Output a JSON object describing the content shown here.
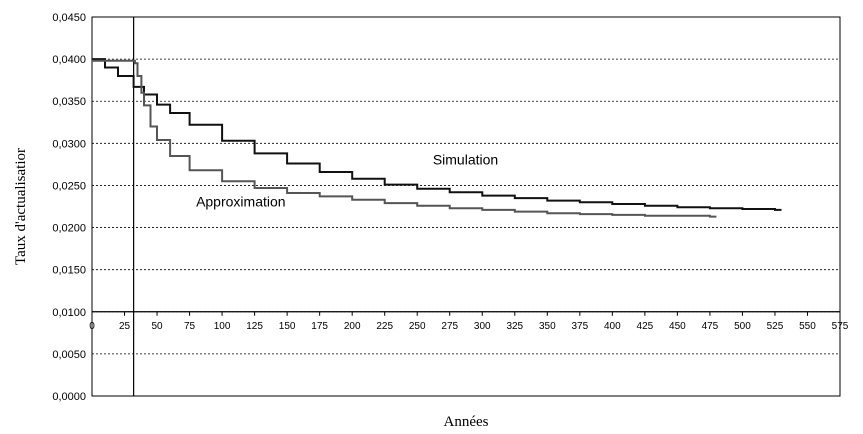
{
  "chart_data": {
    "type": "line",
    "title": "",
    "xlabel": "Années",
    "ylabel": "Taux d'actualisatior",
    "xlim": [
      0,
      575
    ],
    "ylim": [
      0,
      0.045
    ],
    "x_ticks": [
      "0",
      "25",
      "50",
      "75",
      "100",
      "125",
      "150",
      "175",
      "200",
      "225",
      "250",
      "275",
      "300",
      "325",
      "350",
      "375",
      "400",
      "425",
      "450",
      "475",
      "500",
      "525",
      "550",
      "575"
    ],
    "y_ticks": [
      "0,0000",
      "0,0050",
      "0,0100",
      "0,0150",
      "0,0200",
      "0,0250",
      "0,0300",
      "0,0350",
      "0,0400",
      "0,0450"
    ],
    "vertical_line_x": 32,
    "grid": "horizontal dotted",
    "legend": "none",
    "annotations": [
      {
        "text": "Simulation",
        "x": 262,
        "y": 0.0275
      },
      {
        "text": "Approximation",
        "x": 80,
        "y": 0.0225
      }
    ],
    "series": [
      {
        "color": "#111111",
        "x": [
          0,
          10,
          20,
          32,
          40,
          50,
          60,
          75,
          100,
          125,
          150,
          175,
          200,
          225,
          250,
          275,
          300,
          325,
          350,
          375,
          400,
          425,
          450,
          475,
          500,
          525,
          530
        ],
        "y": [
          0.04,
          0.039,
          0.038,
          0.0367,
          0.0358,
          0.0346,
          0.0336,
          0.0322,
          0.0303,
          0.0288,
          0.0276,
          0.0266,
          0.0258,
          0.0251,
          0.0246,
          0.0242,
          0.0238,
          0.0235,
          0.0232,
          0.023,
          0.0228,
          0.0226,
          0.0224,
          0.0223,
          0.0222,
          0.0221,
          0.0221
        ]
      },
      {
        "color": "#555555",
        "x": [
          0,
          31,
          32,
          33,
          35,
          38,
          40,
          45,
          50,
          60,
          75,
          100,
          125,
          150,
          175,
          200,
          225,
          250,
          275,
          300,
          325,
          350,
          375,
          400,
          425,
          450,
          475,
          480
        ],
        "y": [
          0.0398,
          0.0398,
          0.0398,
          0.0395,
          0.038,
          0.036,
          0.0345,
          0.032,
          0.0304,
          0.0285,
          0.0268,
          0.0255,
          0.0247,
          0.0241,
          0.0237,
          0.0233,
          0.0229,
          0.0226,
          0.0223,
          0.0221,
          0.0219,
          0.0217,
          0.0216,
          0.0215,
          0.0214,
          0.0214,
          0.0213,
          0.0213
        ]
      }
    ]
  }
}
